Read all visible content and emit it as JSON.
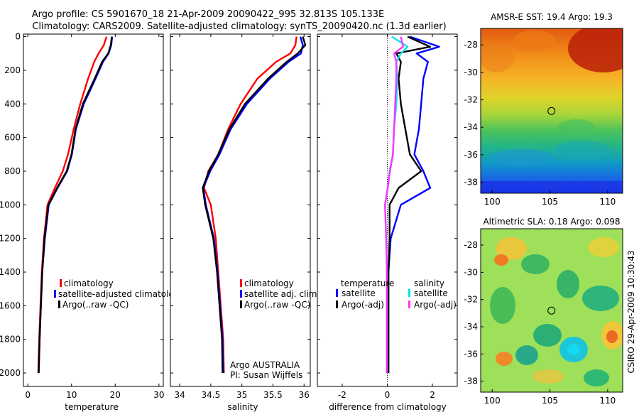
{
  "header": {
    "line1": "Argo profile: CS 5901670_18 21-Apr-2009 20090422_995 32.813S 105.133E",
    "line2": "Climatology: CARS2009. Satellite-adjusted climatology: synTS_20090420.nc (1.3d earlier)"
  },
  "side_label": "CSIRO 29-Apr-2009 10:30:43",
  "colors": {
    "climatology": "#ff0000",
    "satellite": "#0000ff",
    "argo": "#000000",
    "cyan": "#00e5ee",
    "magenta": "#ff33ff"
  },
  "chart_data": [
    {
      "type": "line",
      "title": "",
      "xlabel": "temperature",
      "ylabel": "",
      "xlim": [
        -1,
        31
      ],
      "ylim": [
        2080,
        -15
      ],
      "xticks": [
        0,
        10,
        20,
        30
      ],
      "yticks": [
        0,
        200,
        400,
        600,
        800,
        1000,
        1200,
        1400,
        1600,
        1800,
        2000
      ],
      "series": [
        {
          "name": "climatology",
          "color": "#ff0000",
          "x": [
            18,
            17.4,
            16.2,
            15.2,
            13.8,
            12.0,
            10.5,
            9.2,
            8.0,
            6.2,
            4.5,
            3.7,
            3.2,
            2.9,
            2.6,
            2.4
          ],
          "y": [
            0,
            50,
            100,
            150,
            250,
            400,
            550,
            700,
            800,
            900,
            1000,
            1200,
            1400,
            1600,
            1800,
            2000
          ]
        },
        {
          "name": "satellite-adjusted climatology",
          "color": "#0000ff",
          "x": [
            19.3,
            19.1,
            18.5,
            17.2,
            15.5,
            12.8,
            11.0,
            10.1,
            9.0,
            6.8,
            4.8,
            3.9,
            3.3,
            3.0,
            2.7,
            2.5
          ],
          "y": [
            0,
            50,
            100,
            150,
            250,
            400,
            550,
            700,
            800,
            900,
            1000,
            1200,
            1400,
            1600,
            1800,
            2000
          ]
        },
        {
          "name": "Argo(..raw -QC)",
          "color": "#000000",
          "x": [
            19.2,
            19.0,
            18.4,
            17.0,
            15.3,
            12.6,
            10.9,
            10.0,
            8.9,
            6.7,
            4.7,
            3.8,
            3.3,
            3.0,
            2.7,
            2.5
          ],
          "y": [
            0,
            50,
            100,
            150,
            250,
            400,
            550,
            700,
            800,
            900,
            1000,
            1200,
            1400,
            1600,
            1800,
            2000
          ]
        }
      ],
      "legend": {
        "placement": "lower-center",
        "entries": [
          "climatology",
          "satellite-adjusted climatology",
          "Argo(..raw -QC)"
        ]
      }
    },
    {
      "type": "line",
      "title": "",
      "xlabel": "salinity",
      "ylabel": "",
      "xlim": [
        33.85,
        36.1
      ],
      "ylim": [
        2080,
        -15
      ],
      "xticks": [
        34,
        34.5,
        35,
        35.5,
        36
      ],
      "xticklabels": [
        "34",
        "34.5",
        "35",
        "35.5",
        "36"
      ],
      "series": [
        {
          "name": "climatology",
          "color": "#ff0000",
          "x": [
            35.88,
            35.86,
            35.78,
            35.55,
            35.25,
            34.98,
            34.78,
            34.62,
            34.46,
            34.39,
            34.5,
            34.58,
            34.62,
            34.66,
            34.7,
            34.71
          ],
          "y": [
            0,
            50,
            100,
            150,
            250,
            400,
            550,
            700,
            800,
            900,
            1000,
            1200,
            1400,
            1600,
            1800,
            2000
          ]
        },
        {
          "name": "satellite adj. clim.",
          "color": "#0000ff",
          "x": [
            35.94,
            35.98,
            35.95,
            35.75,
            35.45,
            35.08,
            34.82,
            34.64,
            34.49,
            34.38,
            34.42,
            34.55,
            34.61,
            34.65,
            34.69,
            34.7
          ],
          "y": [
            0,
            50,
            100,
            150,
            250,
            400,
            550,
            700,
            800,
            900,
            1000,
            1200,
            1400,
            1600,
            1800,
            2000
          ]
        },
        {
          "name": "Argo(..raw -QC)",
          "color": "#000000",
          "x": [
            35.98,
            36.02,
            35.9,
            35.72,
            35.42,
            35.05,
            34.8,
            34.62,
            34.47,
            34.37,
            34.41,
            34.54,
            34.6,
            34.64,
            34.68,
            34.69
          ],
          "y": [
            0,
            50,
            100,
            150,
            250,
            400,
            550,
            700,
            800,
            900,
            1000,
            1200,
            1400,
            1600,
            1800,
            2000
          ]
        }
      ],
      "legend": {
        "placement": "lower-right",
        "entries": [
          "climatology",
          "satellite adj. clim.",
          "Argo(..raw -QC)"
        ]
      },
      "annotation": {
        "line1": "Argo AUSTRALIA",
        "line2": "PI: Susan Wijffels"
      }
    },
    {
      "type": "line",
      "title": "",
      "xlabel": "difference from climatology",
      "ylabel": "",
      "xlim": [
        -3.1,
        3.1
      ],
      "ylim": [
        2080,
        -15
      ],
      "xticks": [
        -2,
        0,
        2
      ],
      "reference_line_x": 0,
      "series": [
        {
          "name": "temperature satellite",
          "color": "#0000ff",
          "x": [
            1.0,
            2.3,
            1.3,
            1.8,
            1.6,
            1.5,
            1.4,
            1.2,
            1.6,
            1.9,
            0.6,
            0.15,
            0.05,
            0.05,
            0.05,
            0.05
          ],
          "y": [
            0,
            60,
            100,
            150,
            250,
            400,
            550,
            700,
            800,
            900,
            1000,
            1200,
            1400,
            1600,
            1800,
            2000
          ]
        },
        {
          "name": "temperature Argo(-adj)",
          "color": "#000000",
          "x": [
            0.9,
            1.9,
            0.4,
            0.6,
            0.5,
            0.6,
            0.8,
            1.0,
            1.5,
            0.5,
            0.1,
            0.1,
            0.05,
            0.05,
            0.05,
            0.05
          ],
          "y": [
            0,
            60,
            100,
            150,
            250,
            400,
            550,
            700,
            800,
            900,
            1000,
            1200,
            1400,
            1600,
            1800,
            2000
          ]
        },
        {
          "name": "salinity satellite",
          "color": "#00e5ee",
          "x": [
            0.2,
            0.9,
            0.6,
            0.4,
            0.45,
            0.4,
            0.3,
            0.25,
            0.1,
            0.02,
            -0.1,
            -0.05,
            -0.02,
            -0.02,
            -0.02,
            -0.02
          ],
          "y": [
            0,
            60,
            100,
            150,
            250,
            400,
            550,
            700,
            800,
            900,
            1000,
            1200,
            1400,
            1600,
            1800,
            2000
          ]
        },
        {
          "name": "salinity Argo(-adj)",
          "color": "#ff33ff",
          "x": [
            0.6,
            0.7,
            0.3,
            0.4,
            0.4,
            0.35,
            0.3,
            0.25,
            0.12,
            0.02,
            -0.1,
            -0.05,
            -0.02,
            -0.02,
            -0.02,
            -0.02
          ],
          "y": [
            0,
            60,
            100,
            150,
            250,
            400,
            550,
            700,
            800,
            900,
            1000,
            1200,
            1400,
            1600,
            1800,
            2000
          ]
        }
      ],
      "legend": {
        "placement": "lower-center",
        "col1_title": "temperature",
        "col2_title": "salinity",
        "entries": [
          "satellite",
          "Argo(-adj)",
          "satellite",
          "Argo(-adj)"
        ]
      }
    },
    {
      "type": "heatmap",
      "title": "AMSR-E SST: 19.4  Argo: 19.3",
      "xlim": [
        99,
        111.3
      ],
      "ylim": [
        -38.8,
        -26.8
      ],
      "xticks": [
        100,
        105,
        110
      ],
      "yticks": [
        -28,
        -30,
        -32,
        -34,
        -36,
        -38
      ],
      "marker": {
        "lon": 105.133,
        "lat": -32.813
      },
      "scale": "warm north to cold south"
    },
    {
      "type": "heatmap",
      "title": "Altimetric SLA: 0.18  Argo: 0.098",
      "xlim": [
        99,
        111.3
      ],
      "ylim": [
        -38.8,
        -26.8
      ],
      "xticks": [
        100,
        105,
        110
      ],
      "yticks": [
        -28,
        -30,
        -32,
        -34,
        -36,
        -38
      ],
      "marker": {
        "lon": 105.133,
        "lat": -32.813
      },
      "scale": "eddy field"
    }
  ]
}
